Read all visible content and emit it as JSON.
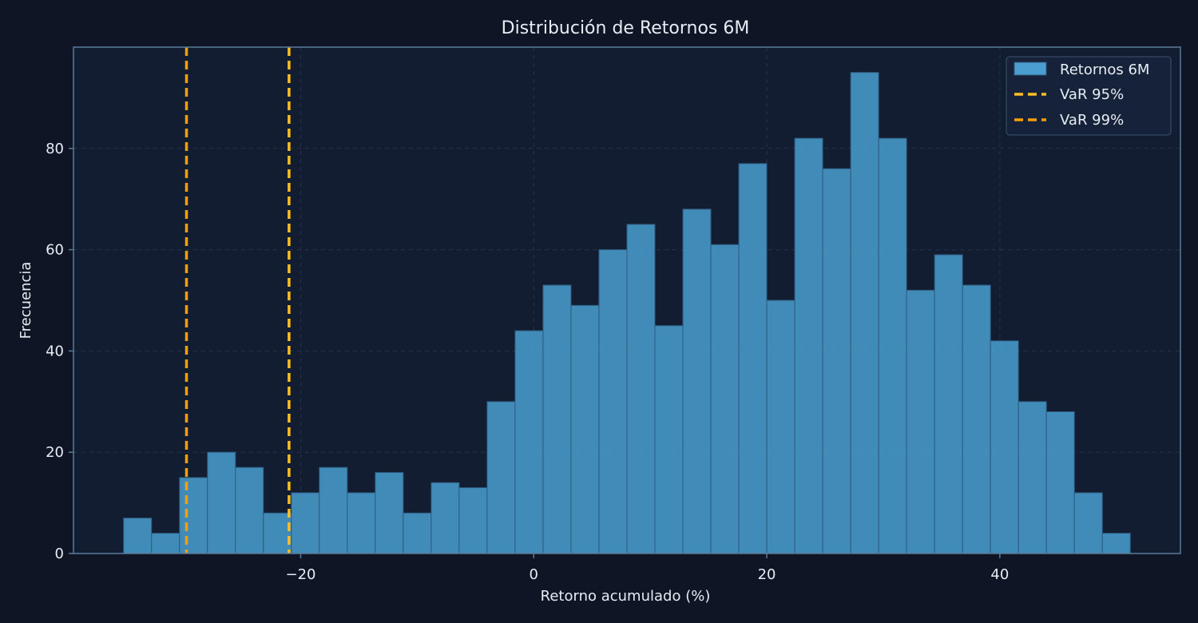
{
  "chart_data": {
    "type": "bar",
    "subtype": "histogram",
    "title": "Distribución de Retornos 6M",
    "xlabel": "Retorno acumulado (%)",
    "ylabel": "Frecuencia",
    "xlim": [
      -39.5,
      55.5
    ],
    "ylim": [
      0,
      100
    ],
    "xticks": [
      -20,
      0,
      20,
      40
    ],
    "xtick_labels": [
      "−20",
      "0",
      "20",
      "40"
    ],
    "yticks": [
      0,
      20,
      40,
      60,
      80
    ],
    "ytick_labels": [
      "0",
      "20",
      "40",
      "60",
      "80"
    ],
    "grid": true,
    "bins": {
      "start": -35.2,
      "width": 2.4,
      "counts": [
        7,
        4,
        15,
        20,
        17,
        8,
        12,
        17,
        12,
        16,
        8,
        14,
        13,
        30,
        44,
        53,
        49,
        60,
        65,
        45,
        68,
        61,
        77,
        50,
        82,
        76,
        95,
        82,
        52,
        59,
        53,
        42,
        30,
        28,
        12,
        4
      ]
    },
    "series": [
      {
        "name": "Retornos 6M",
        "kind": "histogram",
        "color": "#4a9fd0"
      },
      {
        "name": "VaR 95%",
        "kind": "vline",
        "x": -21.0,
        "color": "#fbbf24"
      },
      {
        "name": "VaR 99%",
        "kind": "vline",
        "x": -29.8,
        "color": "#f59e0b"
      }
    ],
    "legend_position": "top-right",
    "colors": {
      "background": "#0f1524",
      "plot_background": "#131d31",
      "frame": "#5a7a9a",
      "bar_fill": "#4a9fd0",
      "bar_edge": "#2e5a7e",
      "grid": "#25344d"
    }
  }
}
